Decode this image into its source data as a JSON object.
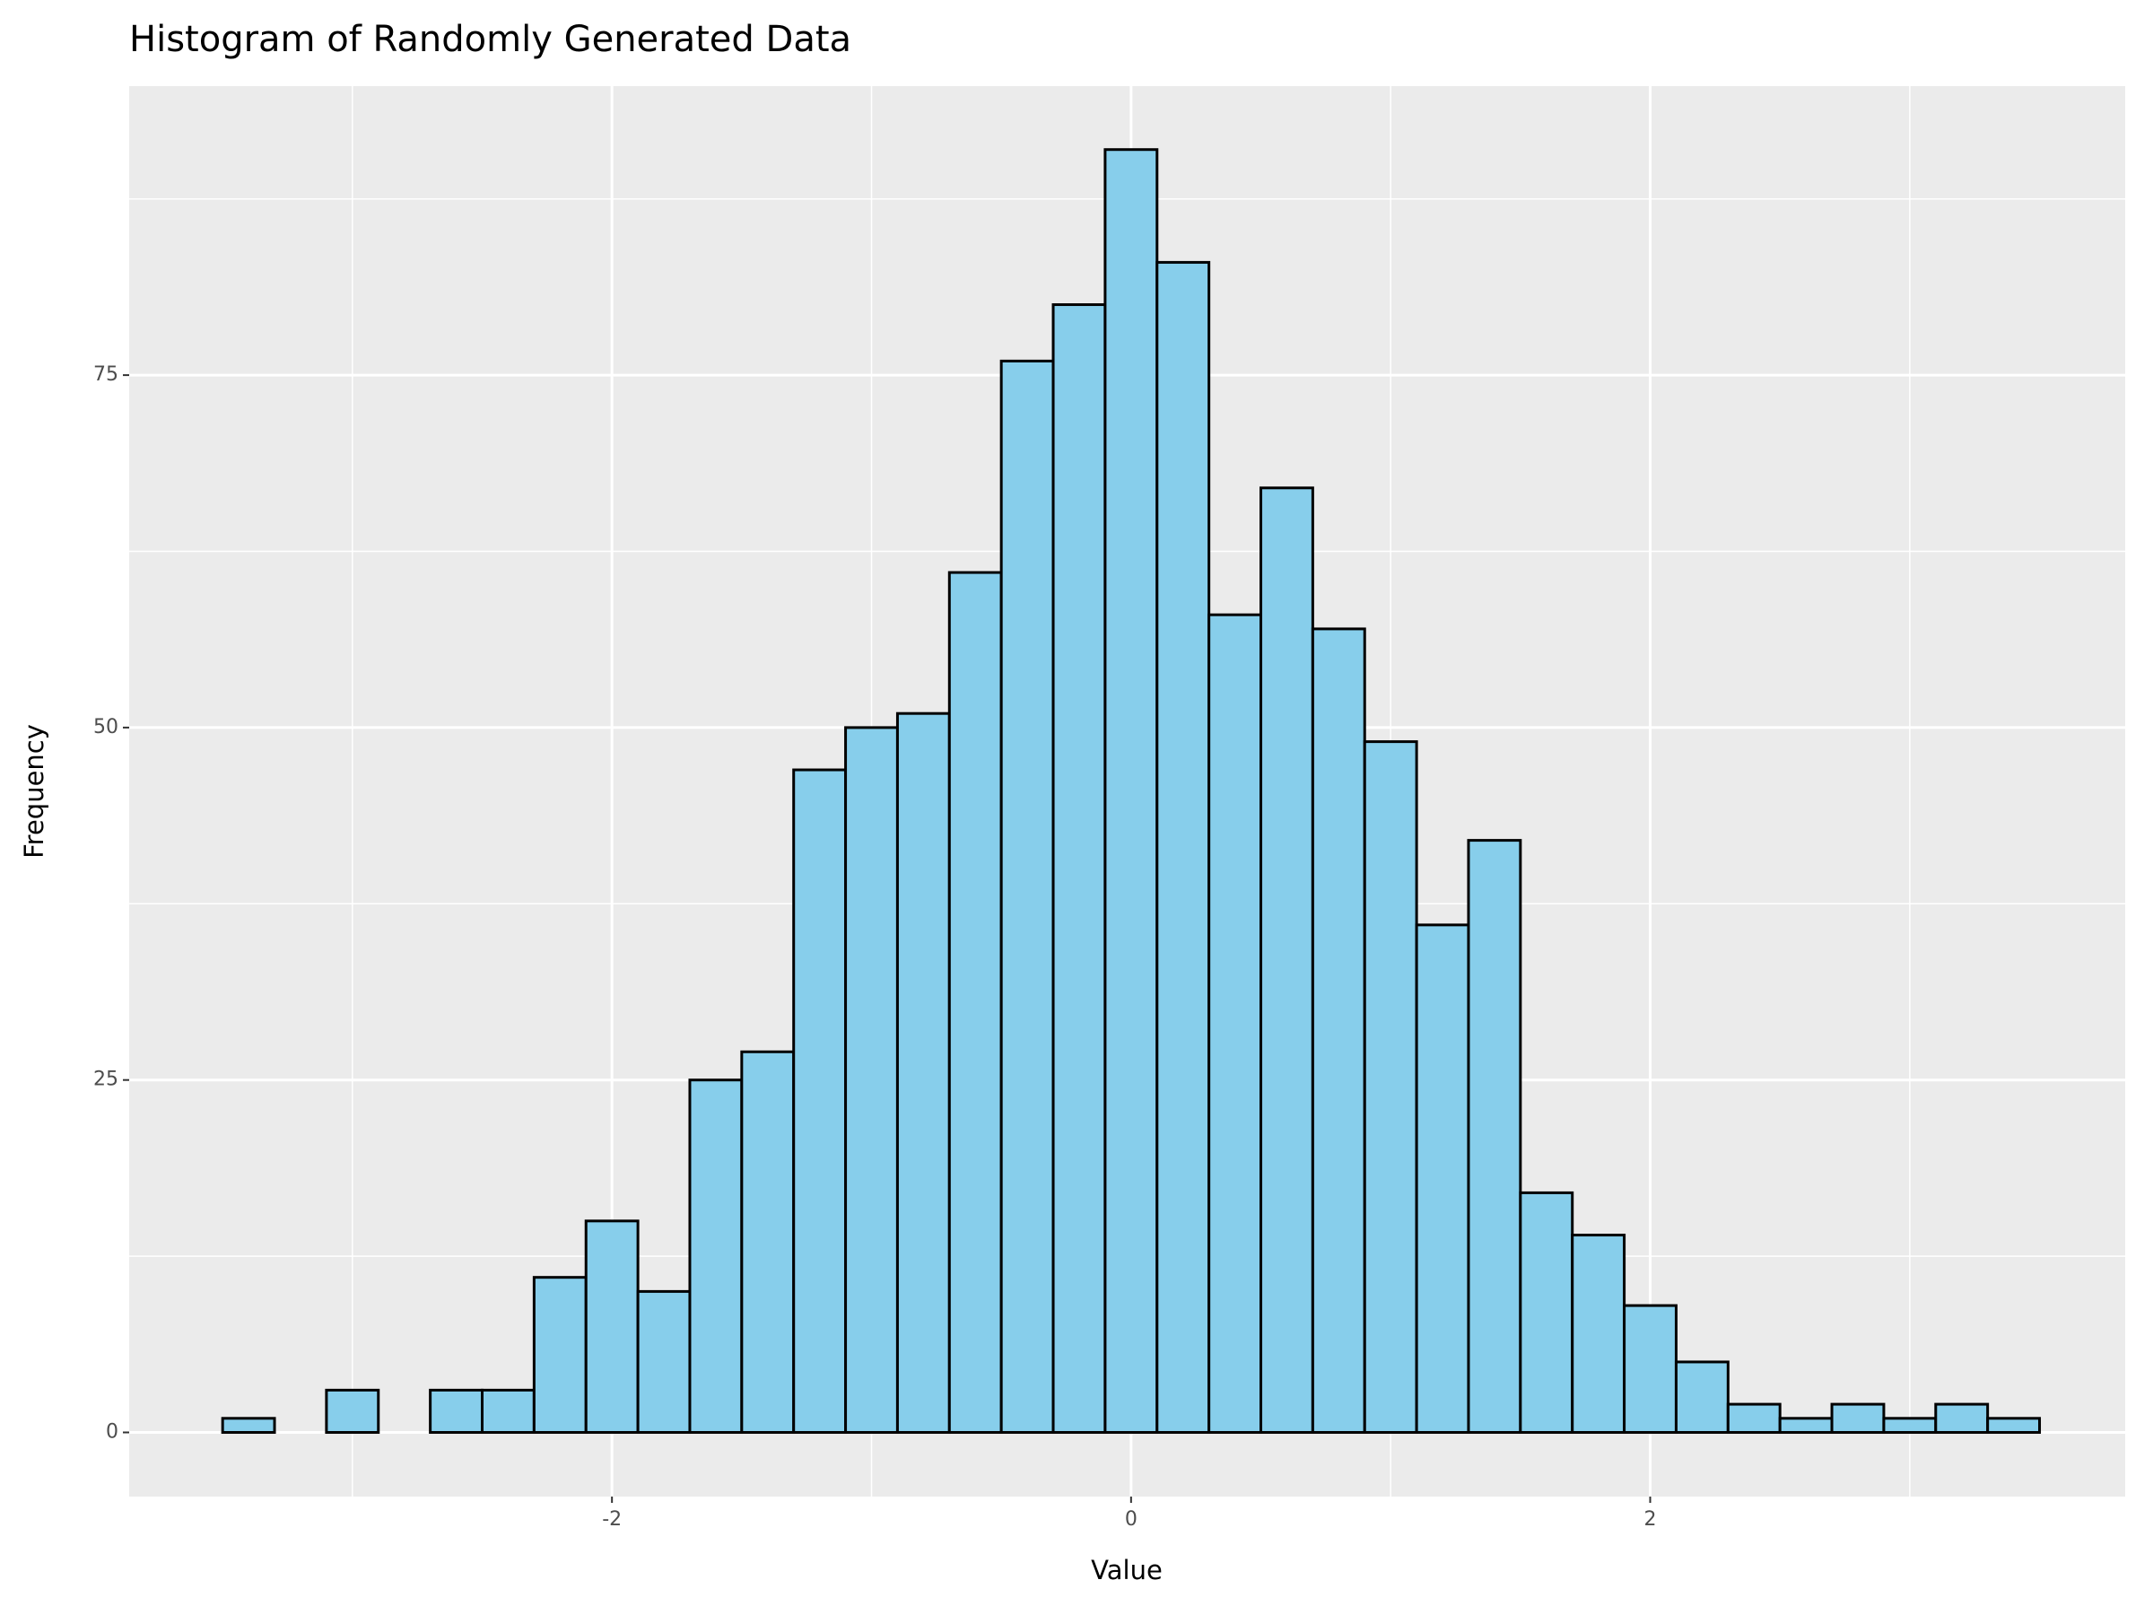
{
  "chart_data": {
    "type": "histogram",
    "title": "Histogram of Randomly Generated Data",
    "x_label": "Value",
    "y_label": "Frequency",
    "bins": [
      -3.5,
      -3.3,
      -3.1,
      -2.9,
      -2.7,
      -2.5,
      -2.3,
      -2.1,
      -1.9,
      -1.7,
      -1.5,
      -1.3,
      -1.1,
      -0.9,
      -0.7,
      -0.5,
      -0.3,
      -0.1,
      0.1,
      0.3,
      0.5,
      0.7,
      0.9,
      1.1,
      1.3,
      1.5,
      1.7,
      1.9,
      2.1,
      2.3,
      2.5,
      2.7,
      2.9,
      3.1,
      3.3,
      3.5
    ],
    "values": [
      1,
      0,
      3,
      0,
      3,
      3,
      11,
      15,
      10,
      25,
      27,
      47,
      50,
      51,
      61,
      76,
      80,
      91,
      83,
      58,
      67,
      57,
      49,
      36,
      42,
      17,
      14,
      9,
      5,
      2,
      1,
      2,
      1,
      2,
      1
    ],
    "color": "#87ceeb",
    "edge_color": "#000000",
    "xlim": [
      -3.86,
      3.83
    ],
    "ylim": [
      -4.55,
      95.5
    ],
    "xticks": [
      -2,
      0,
      2
    ],
    "yticks": [
      0,
      25,
      50,
      75
    ],
    "x_minor_ticks": [
      -3,
      -1,
      1,
      3
    ],
    "y_minor_ticks": [
      12.5,
      37.5,
      62.5,
      87.5
    ],
    "grid": true
  }
}
